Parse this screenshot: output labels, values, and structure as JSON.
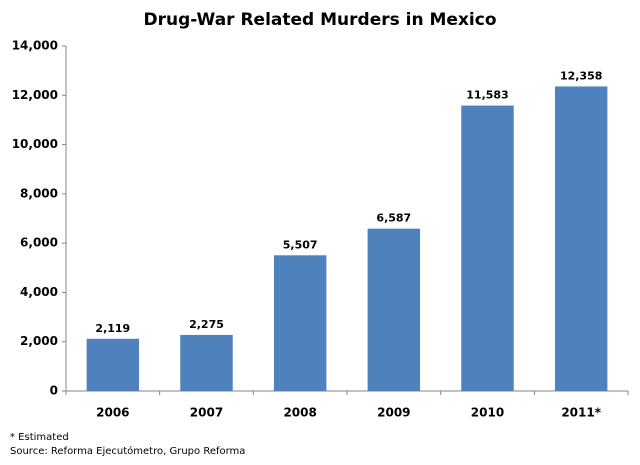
{
  "chart_data": {
    "type": "bar",
    "title": "Drug-War Related Murders in Mexico",
    "categories": [
      "2006",
      "2007",
      "2008",
      "2009",
      "2010",
      "2011*"
    ],
    "values": [
      2119,
      2275,
      5507,
      6587,
      11583,
      12358
    ],
    "value_labels": [
      "2,119",
      "2,275",
      "5,507",
      "6,587",
      "11,583",
      "12,358"
    ],
    "color": "#4f81bd",
    "ylim": [
      0,
      14000
    ],
    "yticks": [
      0,
      {
        "value": 2000,
        "label": "2,000"
      },
      {
        "value": 4000,
        "label": "4,000"
      },
      {
        "value": 6000,
        "label": "6,000"
      },
      {
        "value": 8000,
        "label": "8,000"
      },
      {
        "value": 10000,
        "label": "10,000"
      },
      {
        "value": 12000,
        "label": "12,000"
      },
      {
        "value": 14000,
        "label": "14,000"
      }
    ],
    "grid": false,
    "footnotes": [
      "* Estimated",
      "Source: Reforma Ejecutómetro, Grupo Reforma"
    ]
  }
}
